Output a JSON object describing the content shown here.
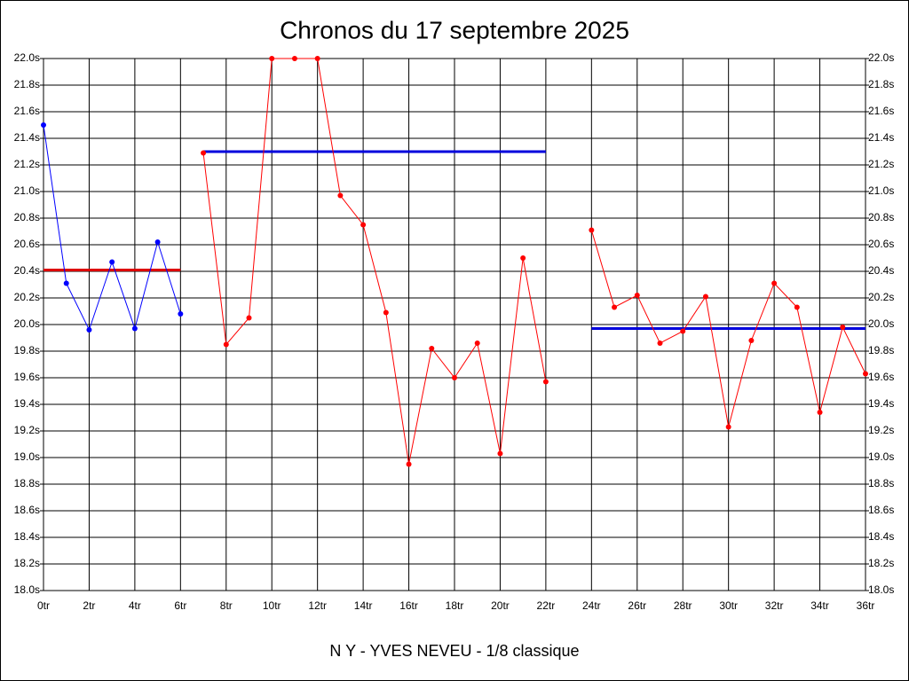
{
  "chart_data": {
    "type": "line",
    "title": "Chronos du 17 septembre 2025",
    "xlabel": "N Y - YVES NEVEU - 1/8 classique",
    "xlim": [
      0,
      36
    ],
    "ylim": [
      18.0,
      22.0
    ],
    "grid": true,
    "xticks": [
      {
        "value": 0,
        "label": "0tr"
      },
      {
        "value": 2,
        "label": "2tr"
      },
      {
        "value": 4,
        "label": "4tr"
      },
      {
        "value": 6,
        "label": "6tr"
      },
      {
        "value": 8,
        "label": "8tr"
      },
      {
        "value": 10,
        "label": "10tr"
      },
      {
        "value": 12,
        "label": "12tr"
      },
      {
        "value": 14,
        "label": "14tr"
      },
      {
        "value": 16,
        "label": "16tr"
      },
      {
        "value": 18,
        "label": "18tr"
      },
      {
        "value": 20,
        "label": "20tr"
      },
      {
        "value": 22,
        "label": "22tr"
      },
      {
        "value": 24,
        "label": "24tr"
      },
      {
        "value": 26,
        "label": "26tr"
      },
      {
        "value": 28,
        "label": "28tr"
      },
      {
        "value": 30,
        "label": "30tr"
      },
      {
        "value": 32,
        "label": "32tr"
      },
      {
        "value": 34,
        "label": "34tr"
      },
      {
        "value": 36,
        "label": "36tr"
      }
    ],
    "yticks": [
      {
        "value": 18.0,
        "label": "18.0s"
      },
      {
        "value": 18.2,
        "label": "18.2s"
      },
      {
        "value": 18.4,
        "label": "18.4s"
      },
      {
        "value": 18.6,
        "label": "18.6s"
      },
      {
        "value": 18.8,
        "label": "18.8s"
      },
      {
        "value": 19.0,
        "label": "19.0s"
      },
      {
        "value": 19.2,
        "label": "19.2s"
      },
      {
        "value": 19.4,
        "label": "19.4s"
      },
      {
        "value": 19.6,
        "label": "19.6s"
      },
      {
        "value": 19.8,
        "label": "19.8s"
      },
      {
        "value": 20.0,
        "label": "20.0s"
      },
      {
        "value": 20.2,
        "label": "20.2s"
      },
      {
        "value": 20.4,
        "label": "20.4s"
      },
      {
        "value": 20.6,
        "label": "20.6s"
      },
      {
        "value": 20.8,
        "label": "20.8s"
      },
      {
        "value": 21.0,
        "label": "21.0s"
      },
      {
        "value": 21.2,
        "label": "21.2s"
      },
      {
        "value": 21.4,
        "label": "21.4s"
      },
      {
        "value": 21.6,
        "label": "21.6s"
      },
      {
        "value": 21.8,
        "label": "21.8s"
      },
      {
        "value": 22.0,
        "label": "22.0s"
      }
    ],
    "series": [
      {
        "color": "#0000ff",
        "x": [
          0,
          1,
          2,
          3,
          4,
          5,
          6
        ],
        "values": [
          21.5,
          20.31,
          19.96,
          20.47,
          19.97,
          20.62,
          20.08
        ]
      },
      {
        "color": "#ff0000",
        "x": [
          7,
          8,
          9,
          10,
          11,
          12,
          13,
          14,
          15,
          16,
          17,
          18,
          19,
          20,
          21,
          22
        ],
        "values": [
          21.29,
          19.85,
          20.05,
          22.0,
          22.0,
          22.0,
          20.97,
          20.75,
          20.09,
          18.95,
          19.82,
          19.6,
          19.86,
          19.03,
          20.5,
          19.57
        ]
      },
      {
        "color": "#ff0000",
        "x": [
          24,
          25,
          26,
          27,
          28,
          29,
          30,
          31,
          32,
          33,
          34,
          35,
          36
        ],
        "values": [
          20.71,
          20.13,
          20.22,
          19.86,
          19.95,
          20.21,
          19.23,
          19.88,
          20.31,
          20.13,
          19.34,
          19.98,
          19.63
        ]
      }
    ],
    "reference_lines": [
      {
        "color": "#dd0000",
        "x": [
          0,
          6
        ],
        "value": 20.41
      },
      {
        "color": "#0000dd",
        "x": [
          7,
          22
        ],
        "value": 21.3
      },
      {
        "color": "#0000dd",
        "x": [
          24,
          36
        ],
        "value": 19.97
      }
    ]
  }
}
